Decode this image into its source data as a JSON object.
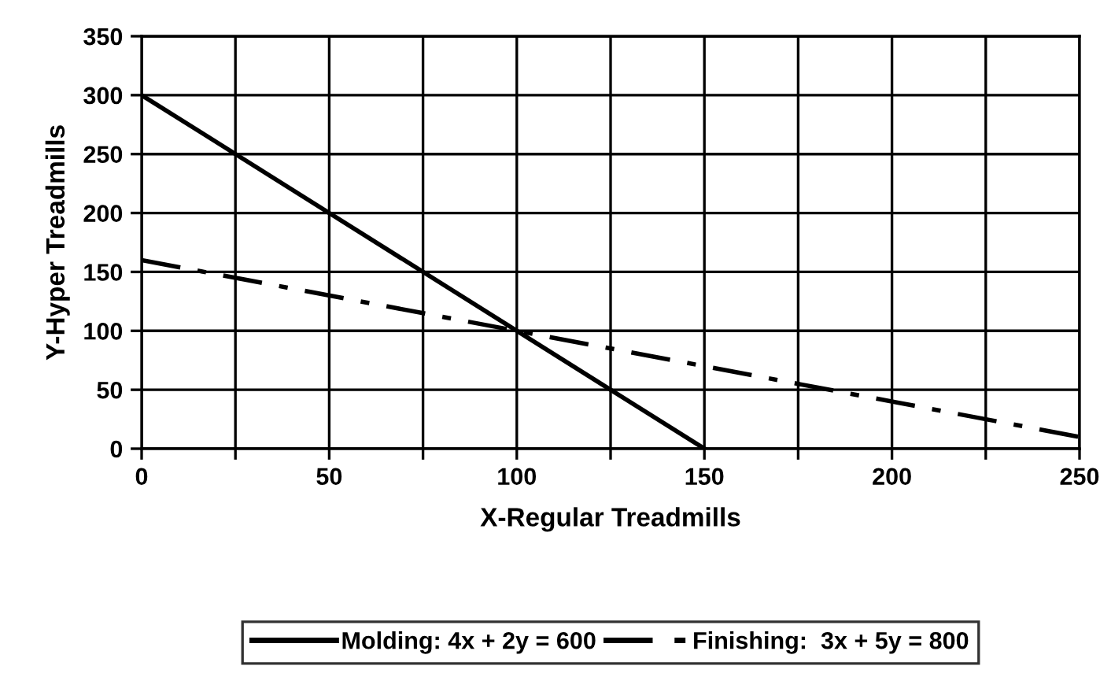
{
  "chart_data": {
    "type": "line",
    "xlabel": "X-Regular Treadmills",
    "ylabel": "Y-Hyper Treadmills",
    "xlim": [
      0,
      250
    ],
    "ylim": [
      0,
      350
    ],
    "xticks": [
      0,
      {
        "value": 25,
        "label": null
      },
      50,
      {
        "value": 75,
        "label": null
      },
      100,
      {
        "value": 125,
        "label": null
      },
      150,
      {
        "value": 175,
        "label": null
      },
      200,
      {
        "value": 225,
        "label": null
      },
      250
    ],
    "yticks": [
      0,
      50,
      100,
      150,
      200,
      250,
      300,
      350
    ],
    "grid": true,
    "legend": "bottom",
    "marker": "none",
    "series": [
      {
        "name": "Molding: 4x + 2y = 600",
        "color": "#000000",
        "x": [
          0,
          150
        ],
        "values": [
          300,
          0
        ],
        "line_style": "solid"
      },
      {
        "name": "Finishing:  3x + 5y = 800",
        "color": "#000000",
        "x": [
          0,
          250
        ],
        "values": [
          160,
          10
        ],
        "line_style": "dashdot"
      }
    ]
  }
}
